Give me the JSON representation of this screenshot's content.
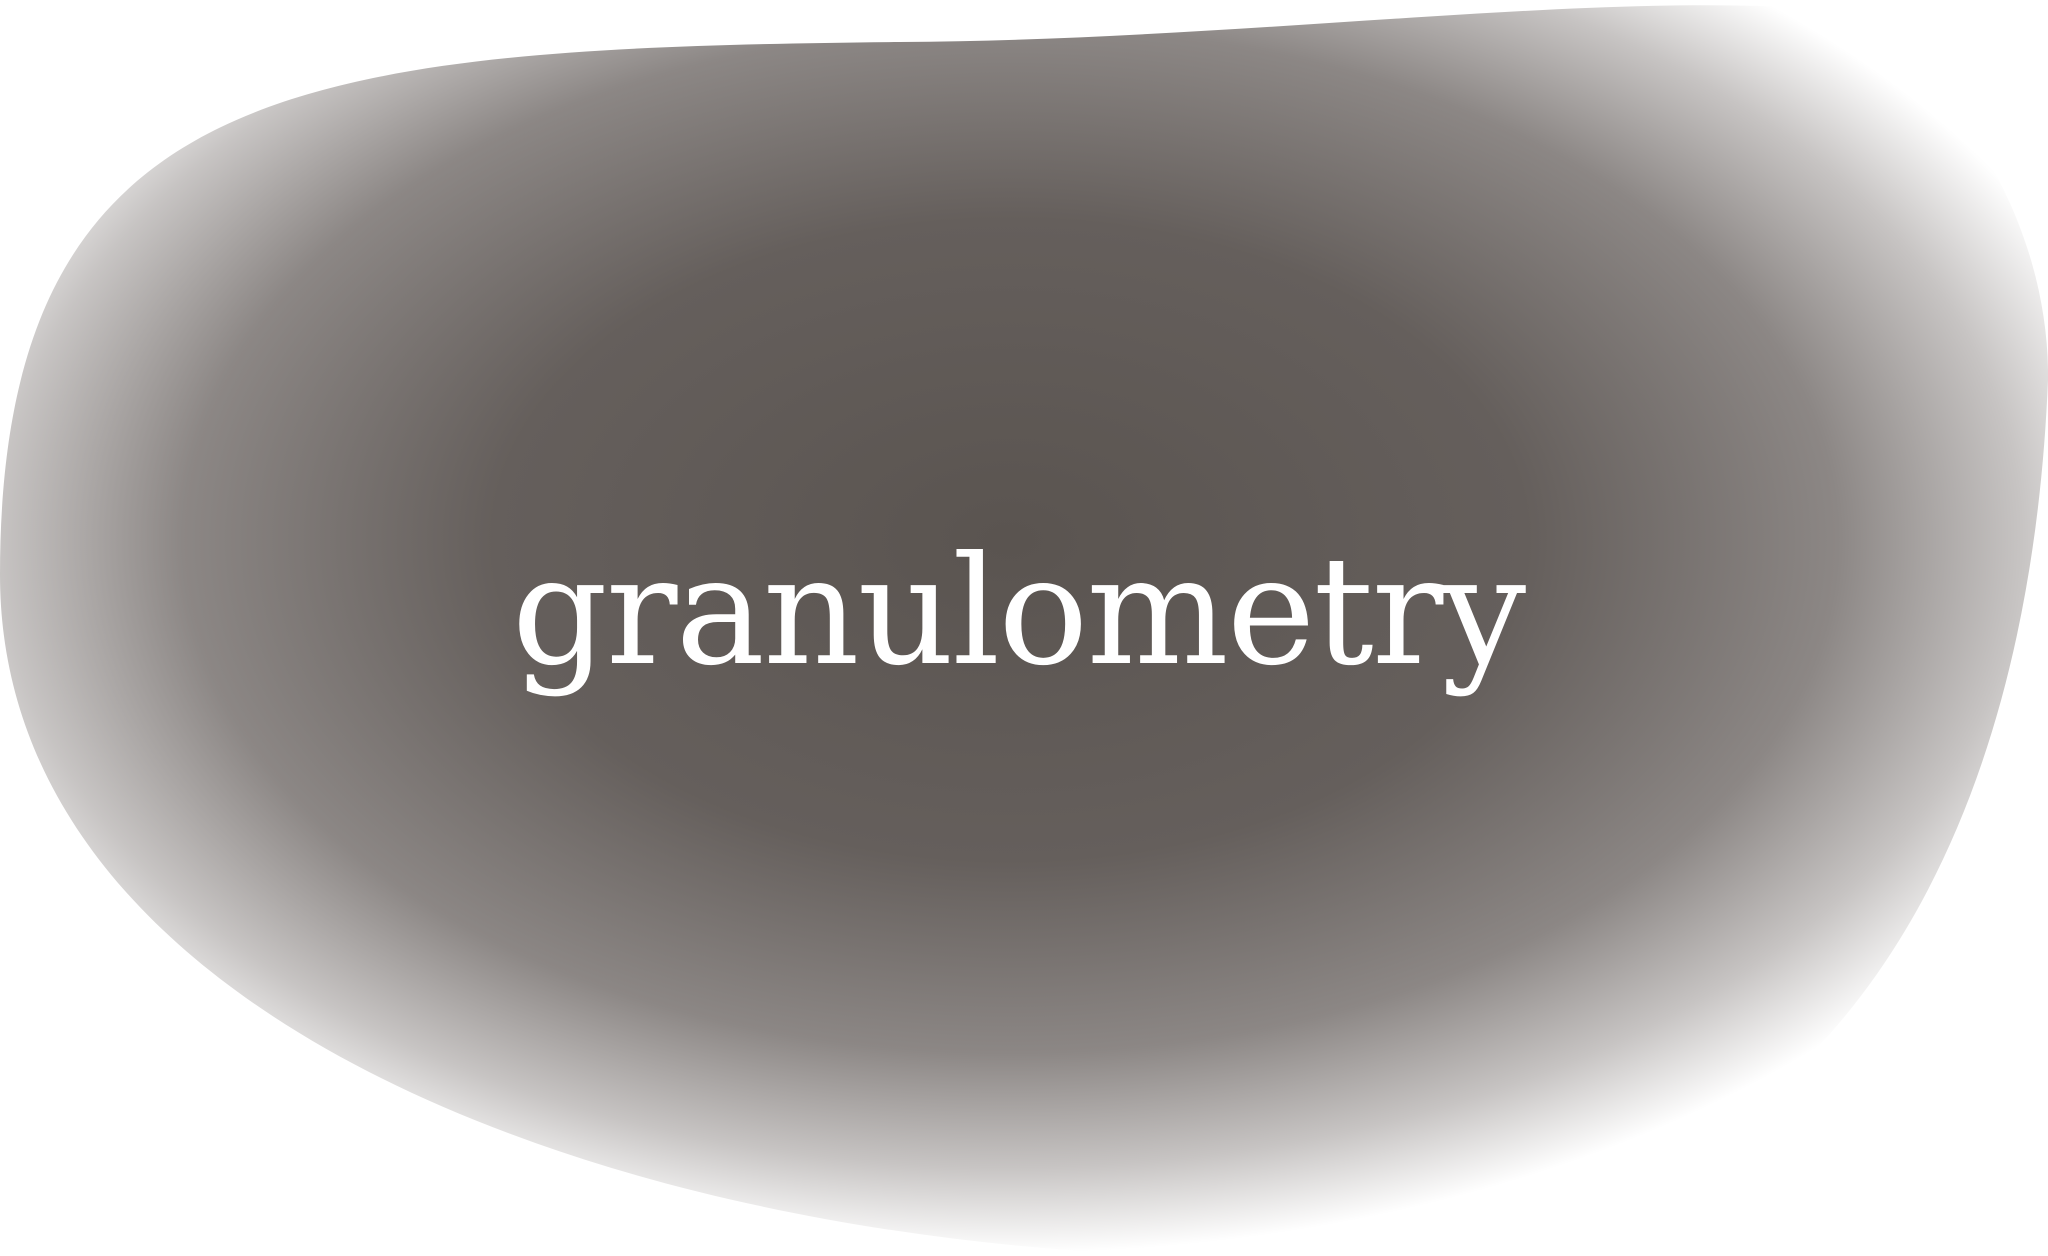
{
  "word": "granulometry",
  "colors": {
    "background": "#ffffff",
    "blob_center": "#5a5450",
    "blob_mid": "#6f6866",
    "blob_edge": "#ffffff",
    "text": "#ffffff"
  }
}
